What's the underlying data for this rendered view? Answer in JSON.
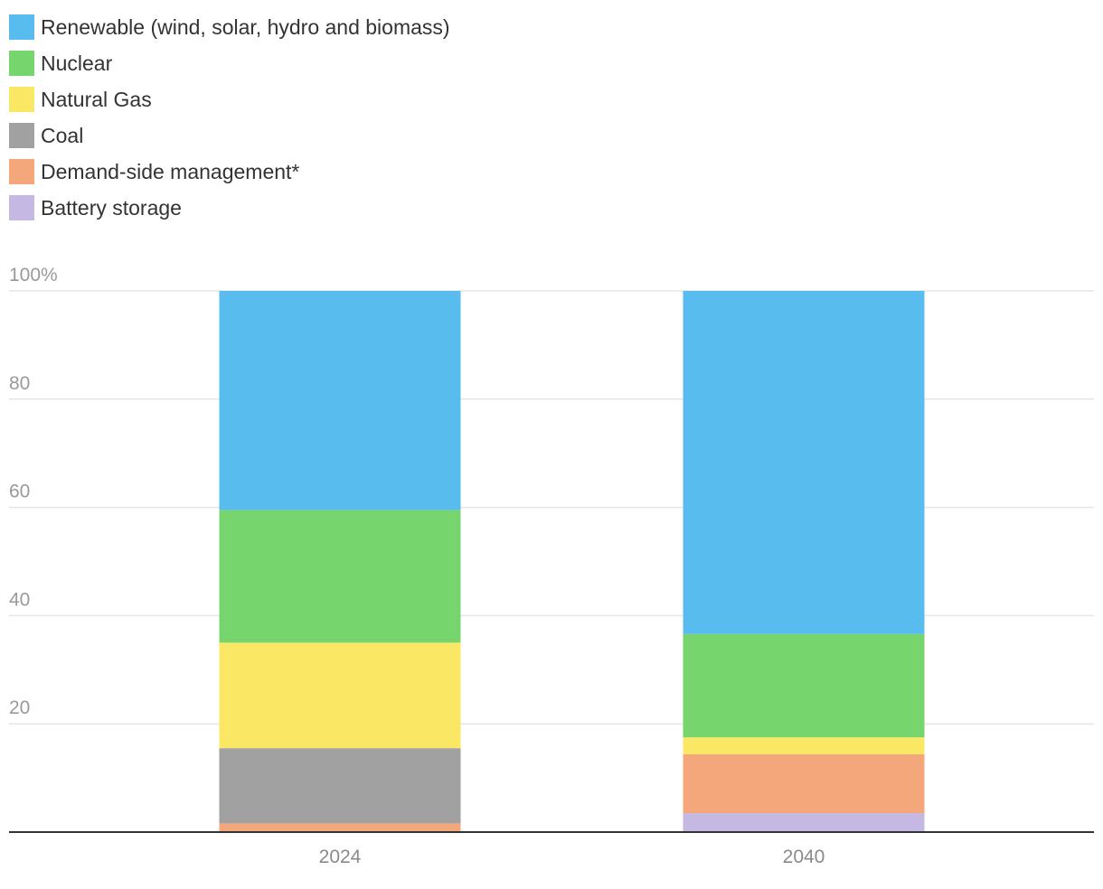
{
  "chart_data": {
    "type": "bar",
    "stacked": true,
    "categories": [
      "2024",
      "2040"
    ],
    "series": [
      {
        "name": "Battery storage",
        "color": "#C5B9E3",
        "values": [
          0,
          3.5
        ]
      },
      {
        "name": "Demand-side management*",
        "color": "#F3A77B",
        "values": [
          1.6,
          10.9
        ]
      },
      {
        "name": "Coal",
        "color": "#A1A1A1",
        "values": [
          13.9,
          0
        ]
      },
      {
        "name": "Natural Gas",
        "color": "#FAE763",
        "values": [
          19.5,
          3.1
        ]
      },
      {
        "name": "Nuclear",
        "color": "#77D56E",
        "values": [
          24.5,
          19.1
        ]
      },
      {
        "name": "Renewable (wind, solar, hydro and biomass)",
        "color": "#58BCEE",
        "values": [
          40.5,
          63.4
        ]
      }
    ],
    "legend_order": [
      "Renewable (wind, solar, hydro and biomass)",
      "Nuclear",
      "Natural Gas",
      "Coal",
      "Demand-side management*",
      "Battery storage"
    ],
    "y_ticks": [
      0,
      20,
      40,
      60,
      80,
      100
    ],
    "y_tick_labels": [
      "",
      "20",
      "40",
      "60",
      "80",
      "100%"
    ],
    "ylim": [
      0,
      100
    ],
    "grid": true,
    "legend_position": "top-left",
    "title": "",
    "xlabel": "",
    "ylabel": ""
  }
}
